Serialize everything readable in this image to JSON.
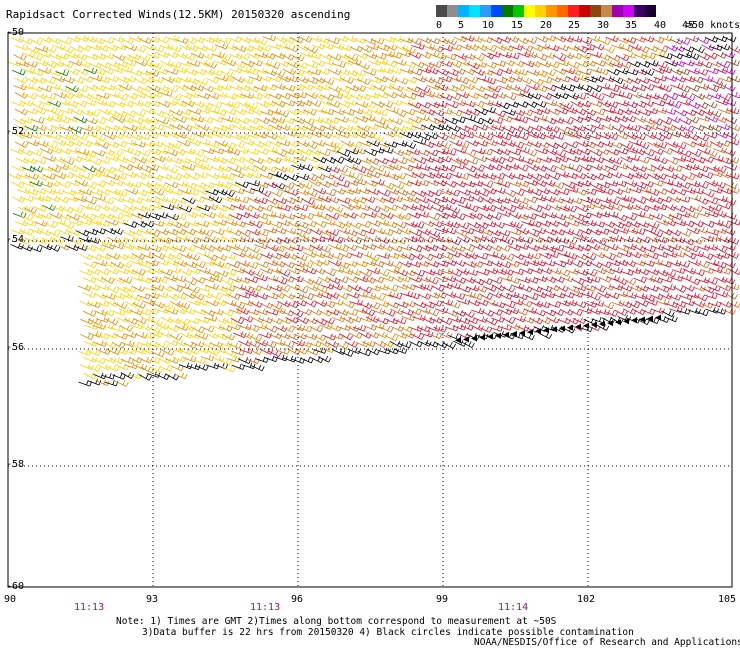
{
  "title": "Rapidsact Corrected Winds(12.5KM) 20150320 ascending",
  "legend": {
    "labels": [
      "0",
      "5",
      "10",
      "15",
      "20",
      "25",
      "30",
      "35",
      "40",
      "45",
      ">50 knots"
    ],
    "colors": [
      "#4a4a4a",
      "#8e8e8e",
      "#00b4ff",
      "#00e4ff",
      "#2a9bff",
      "#0048ff",
      "#007a00",
      "#00c800",
      "#ffff00",
      "#ffd200",
      "#ff9600",
      "#ff6a00",
      "#ff1f1f",
      "#c80000",
      "#8b4513",
      "#c48a4a",
      "#a000b4",
      "#d000ff",
      "#3a0066",
      "#1a0033"
    ]
  },
  "axes": {
    "lat_labels": [
      "-50",
      "-52",
      "-54",
      "-56",
      "-58",
      "-60"
    ],
    "lon_labels": [
      "90",
      "93",
      "96",
      "99",
      "102",
      "105"
    ],
    "time_labels": [
      "11:13",
      "11:13",
      "11:14"
    ]
  },
  "notes": {
    "line1": "Note: 1) Times are GMT 2)Times along bottom correspond to measurement at ~50S",
    "line2": "3)Data buffer is 22 hrs from 20150320 4) Black circles indicate possible contamination"
  },
  "credit": "NOAA/NESDIS/Office of Research and Applications",
  "colors": {
    "yellow": "#ffd200",
    "orange": "#e08a00",
    "dark_orange": "#d2691e",
    "red": "#e01030",
    "crimson": "#c8102e",
    "brown": "#8b4513",
    "magenta": "#c000e0",
    "green": "#007a00",
    "black": "#000000",
    "time_label": "#8b1a8b"
  }
}
